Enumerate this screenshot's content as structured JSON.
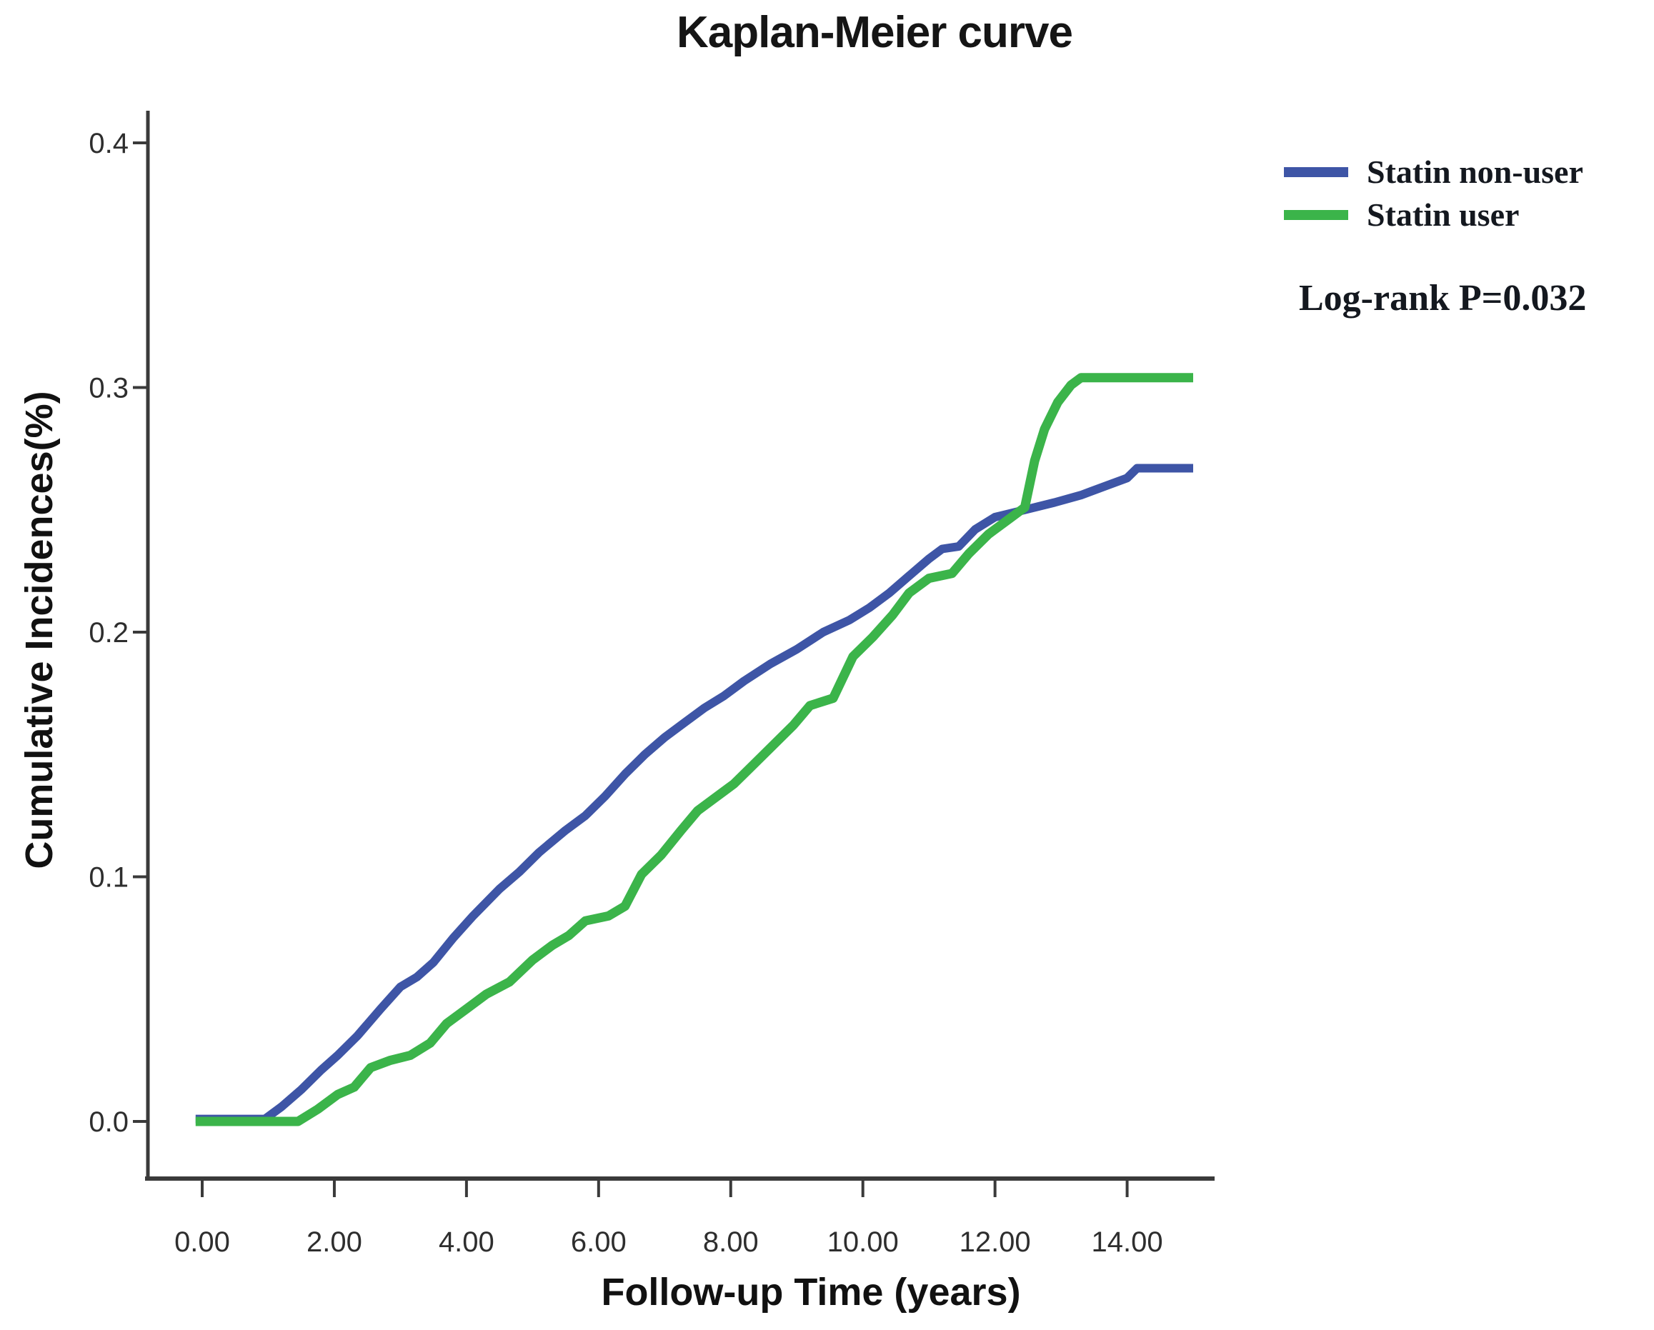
{
  "title": "Kaplan-Meier curve",
  "legend": {
    "items": [
      {
        "label": "Statin non-user",
        "color": "#3e55a6"
      },
      {
        "label": "Statin user",
        "color": "#3bb44a"
      }
    ],
    "annotation": "Log-rank P=0.032"
  },
  "chart_data": {
    "type": "line",
    "subtype": "kaplan-meier cumulative incidence",
    "title": "Kaplan-Meier curve",
    "xlabel": "Follow-up Time (years)",
    "ylabel": "Cumulative Incidences(%)",
    "x_ticks": [
      "0.00",
      "2.00",
      "4.00",
      "6.00",
      "8.00",
      "10.00",
      "12.00",
      "14.00"
    ],
    "x_tick_values": [
      0,
      2,
      4,
      6,
      8,
      10,
      12,
      14
    ],
    "y_ticks": [
      "0.0",
      "0.1",
      "0.2",
      "0.3",
      "0.4"
    ],
    "y_tick_values": [
      0.0,
      0.1,
      0.2,
      0.3,
      0.4
    ],
    "xlim": [
      -0.8,
      15.8
    ],
    "ylim": [
      -0.024,
      0.413
    ],
    "grid": false,
    "legend_position": "outside upper right",
    "annotation": "Log-rank P=0.032",
    "axis_color": "#3a3a3a",
    "tick_label_color": "#2e2e2e",
    "series": [
      {
        "name": "Statin non-user",
        "color": "#3e55a6",
        "points": [
          [
            -0.1,
            0.001
          ],
          [
            0.95,
            0.001
          ],
          [
            1.2,
            0.006
          ],
          [
            1.5,
            0.013
          ],
          [
            1.8,
            0.021
          ],
          [
            2.05,
            0.027
          ],
          [
            2.35,
            0.035
          ],
          [
            2.7,
            0.046
          ],
          [
            3.0,
            0.055
          ],
          [
            3.25,
            0.059
          ],
          [
            3.5,
            0.065
          ],
          [
            3.8,
            0.075
          ],
          [
            4.1,
            0.084
          ],
          [
            4.5,
            0.095
          ],
          [
            4.8,
            0.102
          ],
          [
            5.1,
            0.11
          ],
          [
            5.5,
            0.119
          ],
          [
            5.8,
            0.125
          ],
          [
            6.1,
            0.133
          ],
          [
            6.4,
            0.142
          ],
          [
            6.7,
            0.15
          ],
          [
            7.0,
            0.157
          ],
          [
            7.3,
            0.163
          ],
          [
            7.6,
            0.169
          ],
          [
            7.9,
            0.174
          ],
          [
            8.2,
            0.18
          ],
          [
            8.6,
            0.187
          ],
          [
            9.0,
            0.193
          ],
          [
            9.4,
            0.2
          ],
          [
            9.8,
            0.205
          ],
          [
            10.1,
            0.21
          ],
          [
            10.4,
            0.216
          ],
          [
            10.7,
            0.223
          ],
          [
            11.0,
            0.23
          ],
          [
            11.2,
            0.234
          ],
          [
            11.45,
            0.235
          ],
          [
            11.7,
            0.242
          ],
          [
            12.0,
            0.247
          ],
          [
            12.45,
            0.25
          ],
          [
            12.9,
            0.253
          ],
          [
            13.3,
            0.256
          ],
          [
            13.7,
            0.26
          ],
          [
            14.0,
            0.263
          ],
          [
            14.15,
            0.267
          ],
          [
            15.0,
            0.267
          ]
        ]
      },
      {
        "name": "Statin user",
        "color": "#3bb44a",
        "points": [
          [
            -0.1,
            0.0
          ],
          [
            1.45,
            0.0
          ],
          [
            1.75,
            0.005
          ],
          [
            2.05,
            0.011
          ],
          [
            2.3,
            0.014
          ],
          [
            2.55,
            0.022
          ],
          [
            2.85,
            0.025
          ],
          [
            3.15,
            0.027
          ],
          [
            3.45,
            0.032
          ],
          [
            3.7,
            0.04
          ],
          [
            4.0,
            0.046
          ],
          [
            4.3,
            0.052
          ],
          [
            4.65,
            0.057
          ],
          [
            5.0,
            0.066
          ],
          [
            5.3,
            0.072
          ],
          [
            5.55,
            0.076
          ],
          [
            5.8,
            0.082
          ],
          [
            6.15,
            0.084
          ],
          [
            6.4,
            0.088
          ],
          [
            6.65,
            0.101
          ],
          [
            6.95,
            0.109
          ],
          [
            7.25,
            0.119
          ],
          [
            7.5,
            0.127
          ],
          [
            7.75,
            0.132
          ],
          [
            8.05,
            0.138
          ],
          [
            8.35,
            0.146
          ],
          [
            8.65,
            0.154
          ],
          [
            8.95,
            0.162
          ],
          [
            9.2,
            0.17
          ],
          [
            9.55,
            0.173
          ],
          [
            9.85,
            0.19
          ],
          [
            10.15,
            0.198
          ],
          [
            10.45,
            0.207
          ],
          [
            10.7,
            0.216
          ],
          [
            11.0,
            0.222
          ],
          [
            11.35,
            0.224
          ],
          [
            11.6,
            0.232
          ],
          [
            11.9,
            0.24
          ],
          [
            12.2,
            0.246
          ],
          [
            12.45,
            0.251
          ],
          [
            12.6,
            0.27
          ],
          [
            12.75,
            0.283
          ],
          [
            12.95,
            0.294
          ],
          [
            13.15,
            0.301
          ],
          [
            13.3,
            0.304
          ],
          [
            15.0,
            0.304
          ]
        ]
      }
    ]
  }
}
